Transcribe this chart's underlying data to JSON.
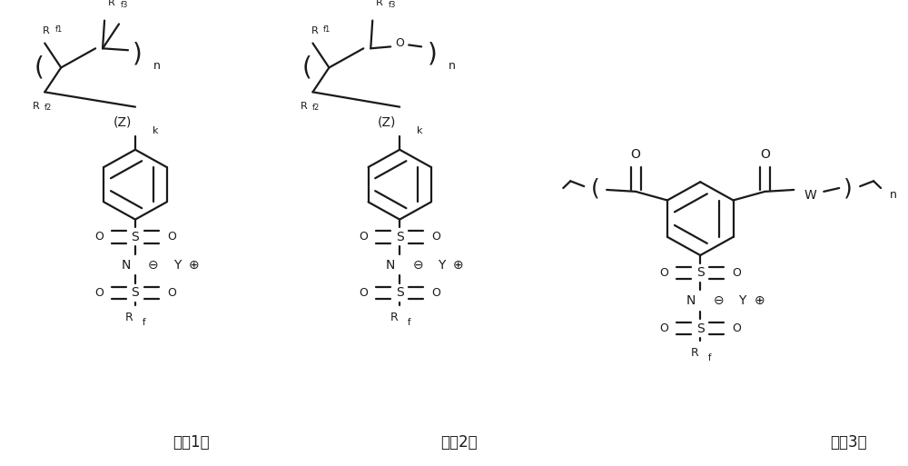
{
  "bg_color": "#ffffff",
  "line_color": "#1a1a1a",
  "line_width": 1.6,
  "fig_width": 10.0,
  "fig_height": 5.13,
  "dpi": 100,
  "fs_main": 9,
  "fs_sub": 7,
  "fs_label": 12,
  "label1": "式（1）",
  "label2": "式（2）",
  "label3": "式（3）"
}
